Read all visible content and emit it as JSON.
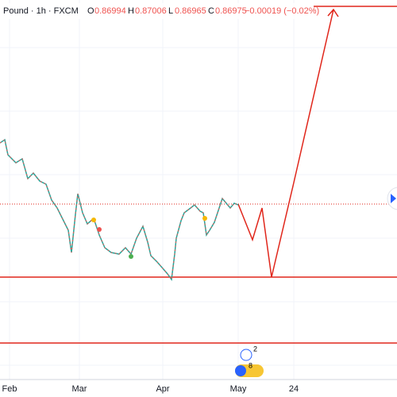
{
  "header": {
    "symbol": "Pound · 1h · FXCM",
    "open_label": "O",
    "open": "0.86994",
    "high_label": "H",
    "high": "0.87006",
    "low_label": "L",
    "low": "0.86965",
    "close_label": "C",
    "close": "0.86975",
    "change": "−0.00019 (−0.02%)"
  },
  "x_axis": {
    "labels": [
      "Feb",
      "Mar",
      "Apr",
      "May",
      "24"
    ]
  },
  "events": {
    "badges": [
      "2",
      "8"
    ]
  }
}
